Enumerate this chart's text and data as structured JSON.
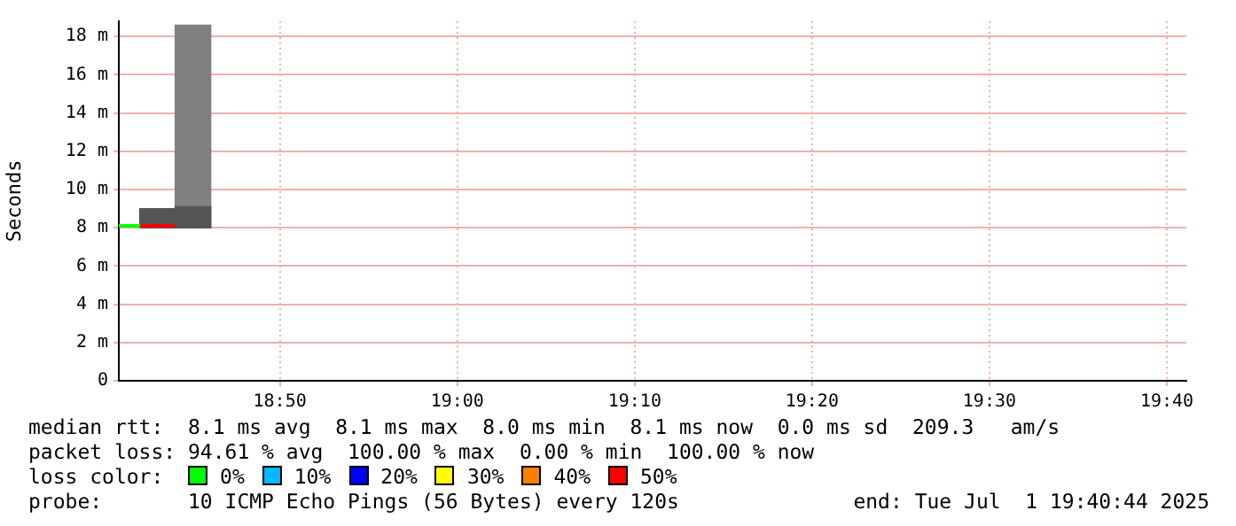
{
  "chart_data": {
    "type": "step",
    "ylabel": "Seconds",
    "legend_title": "loss color:",
    "legend": "bottom",
    "grid": true,
    "xlim": [
      18.682,
      19.685
    ],
    "ylim": [
      0,
      18.8
    ],
    "xticks": [
      {
        "value": 18.8333,
        "label": "18:50"
      },
      {
        "value": 19.0,
        "label": "19:00"
      },
      {
        "value": 19.1667,
        "label": "19:10"
      },
      {
        "value": 19.3333,
        "label": "19:20"
      },
      {
        "value": 19.5,
        "label": "19:30"
      },
      {
        "value": 19.6667,
        "label": "19:40"
      }
    ],
    "yticks": [
      0,
      {
        "value": 2,
        "label": "2 m"
      },
      {
        "value": 4,
        "label": "4 m"
      },
      {
        "value": 6,
        "label": "6 m"
      },
      {
        "value": 8,
        "label": "8 m"
      },
      {
        "value": 10,
        "label": "10 m"
      },
      {
        "value": 12,
        "label": "12 m"
      },
      {
        "value": 14,
        "label": "14 m"
      },
      {
        "value": 16,
        "label": "16 m"
      },
      {
        "value": 18,
        "label": "18 m"
      }
    ],
    "series": [
      {
        "type": "bar",
        "color": "#808080",
        "x": [
          18.7517
        ],
        "base": [
          8
        ],
        "values": [
          10.6
        ]
      },
      {
        "type": "bar",
        "color": "#555555",
        "x": [
          18.7183,
          18.7517
        ],
        "base": [
          8,
          8
        ],
        "values": [
          1,
          1.1
        ]
      },
      {
        "name": "0%",
        "color": "#00ff00",
        "x": [
          18.682,
          18.702
        ],
        "values": [
          8.1,
          8.1
        ]
      },
      {
        "name": "10%",
        "color": "#00b8ff"
      },
      {
        "name": "20%",
        "color": "#0000ff"
      },
      {
        "name": "30%",
        "color": "#ffff00"
      },
      {
        "name": "40%",
        "color": "#ff8000"
      },
      {
        "name": "50%",
        "color": "#ff0000",
        "x": [
          18.702,
          18.735
        ],
        "values": [
          8.1,
          8.1
        ]
      }
    ],
    "annotations": [
      "median rtt:  8.1 ms avg  8.1 ms max  8.0 ms min  8.1 ms now  0.0 ms sd  209.3   am/s",
      "packet loss: 94.61 % avg  100.00 % max  0.00 % min  100.00 % now",
      "probe:       10 ICMP Echo Pings (56 Bytes) every 120s",
      "end: Tue Jul  1 19:40:44 2025"
    ]
  }
}
